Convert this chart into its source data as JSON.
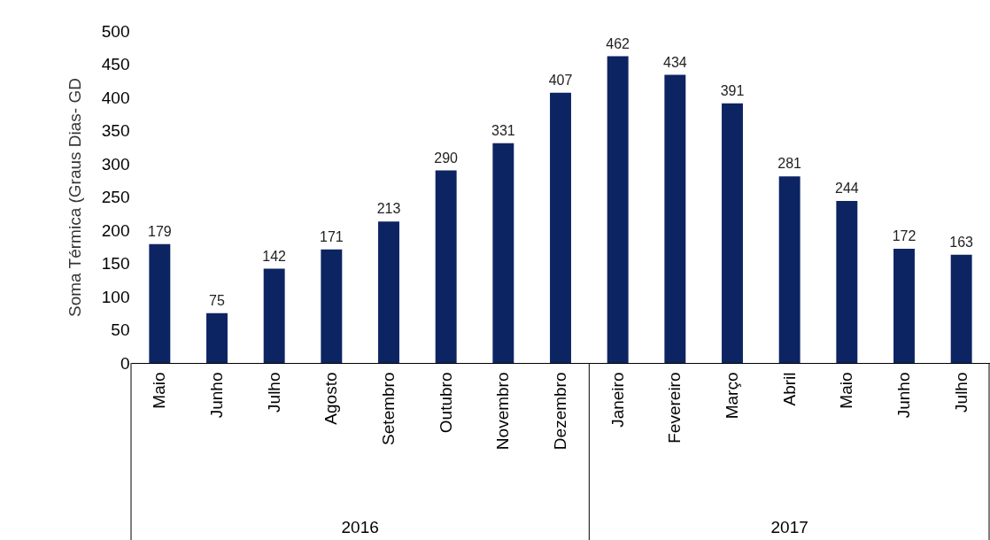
{
  "chart_data": {
    "type": "bar",
    "ylabel": "Soma Térmica (Graus Dias- GD",
    "categories": [
      "Maio",
      "Junho",
      "Julho",
      "Agosto",
      "Setembro",
      "Outubro",
      "Novembro",
      "Dezembro",
      "Janeiro",
      "Fevereiro",
      "Março",
      "Abril",
      "Maio",
      "Junho",
      "Julho"
    ],
    "values": [
      179,
      75,
      142,
      171,
      213,
      290,
      331,
      407,
      462,
      434,
      391,
      281,
      244,
      172,
      163
    ],
    "color": "#0d2463",
    "ylim": [
      0,
      500
    ],
    "yticks": [
      0,
      50,
      100,
      150,
      200,
      250,
      300,
      350,
      400,
      450,
      500
    ],
    "data_labels": true,
    "grid": false,
    "annotations": [
      "2016",
      "2017"
    ]
  }
}
